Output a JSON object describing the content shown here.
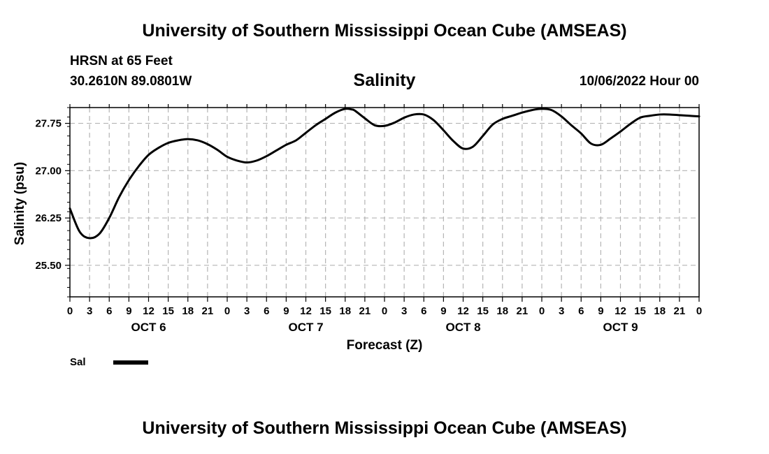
{
  "header": {
    "title": "University of Southern Mississippi Ocean Cube (AMSEAS)",
    "station_name": "HRSN at 65 Feet",
    "station_coords": "30.2610N  89.0801W",
    "variable": "Salinity",
    "datetime": "10/06/2022 Hour 00"
  },
  "footer": {
    "title": "University of Southern Mississippi Ocean Cube (AMSEAS)"
  },
  "legend": {
    "label": "Sal",
    "color": "#000000"
  },
  "chart_data": {
    "type": "line",
    "title": "Salinity",
    "xlabel": "Forecast (Z)",
    "ylabel": "Salinity (psu)",
    "xlim": [
      0,
      96
    ],
    "ylim": [
      25.0,
      28.0
    ],
    "yticks": [
      25.5,
      26.25,
      27.0,
      27.75
    ],
    "ytick_labels": [
      "25.50",
      "26.25",
      "27.00",
      "27.75"
    ],
    "xticks": [
      0,
      3,
      6,
      9,
      12,
      15,
      18,
      21,
      24,
      27,
      30,
      33,
      36,
      39,
      42,
      45,
      48,
      51,
      54,
      57,
      60,
      63,
      66,
      69,
      72,
      75,
      78,
      81,
      84,
      87,
      90,
      93,
      96
    ],
    "xtick_labels": [
      "0",
      "3",
      "6",
      "9",
      "12",
      "15",
      "18",
      "21",
      "0",
      "3",
      "6",
      "9",
      "12",
      "15",
      "18",
      "21",
      "0",
      "3",
      "6",
      "9",
      "12",
      "15",
      "18",
      "21",
      "0",
      "3",
      "6",
      "9",
      "12",
      "15",
      "18",
      "21",
      "0"
    ],
    "day_labels": [
      {
        "label": "OCT 6",
        "x": 12
      },
      {
        "label": "OCT 7",
        "x": 36
      },
      {
        "label": "OCT 8",
        "x": 60
      },
      {
        "label": "OCT 9",
        "x": 84
      }
    ],
    "grid": true,
    "series": [
      {
        "name": "Sal",
        "color": "#000000",
        "x": [
          0,
          1.5,
          3,
          4.5,
          6,
          7.5,
          9,
          10.5,
          12,
          13.5,
          15,
          16.5,
          18,
          19.5,
          21,
          22.5,
          24,
          25.5,
          27,
          28.5,
          30,
          31.5,
          33,
          34.5,
          36,
          37.5,
          39,
          40.5,
          42,
          43,
          43.5,
          45,
          46.5,
          48,
          49.5,
          51,
          52.5,
          54,
          55.5,
          57,
          58.5,
          60,
          61.5,
          63,
          64.5,
          66,
          67.5,
          69,
          70.5,
          72,
          73.5,
          75,
          76.5,
          78,
          79.5,
          81,
          82.5,
          84,
          85.5,
          87,
          88.5,
          90,
          91.5,
          93,
          94.5,
          96
        ],
        "values": [
          26.4,
          26.03,
          25.93,
          26.0,
          26.25,
          26.58,
          26.85,
          27.07,
          27.25,
          27.36,
          27.44,
          27.48,
          27.5,
          27.48,
          27.42,
          27.33,
          27.22,
          27.16,
          27.13,
          27.16,
          27.23,
          27.32,
          27.41,
          27.48,
          27.6,
          27.72,
          27.82,
          27.92,
          27.98,
          27.97,
          27.95,
          27.83,
          27.72,
          27.71,
          27.76,
          27.84,
          27.89,
          27.89,
          27.8,
          27.64,
          27.47,
          27.35,
          27.38,
          27.55,
          27.73,
          27.82,
          27.87,
          27.92,
          27.96,
          27.98,
          27.96,
          27.86,
          27.72,
          27.59,
          27.43,
          27.41,
          27.51,
          27.62,
          27.74,
          27.84,
          27.87,
          27.89,
          27.89,
          27.88,
          27.87,
          27.86
        ]
      }
    ]
  }
}
